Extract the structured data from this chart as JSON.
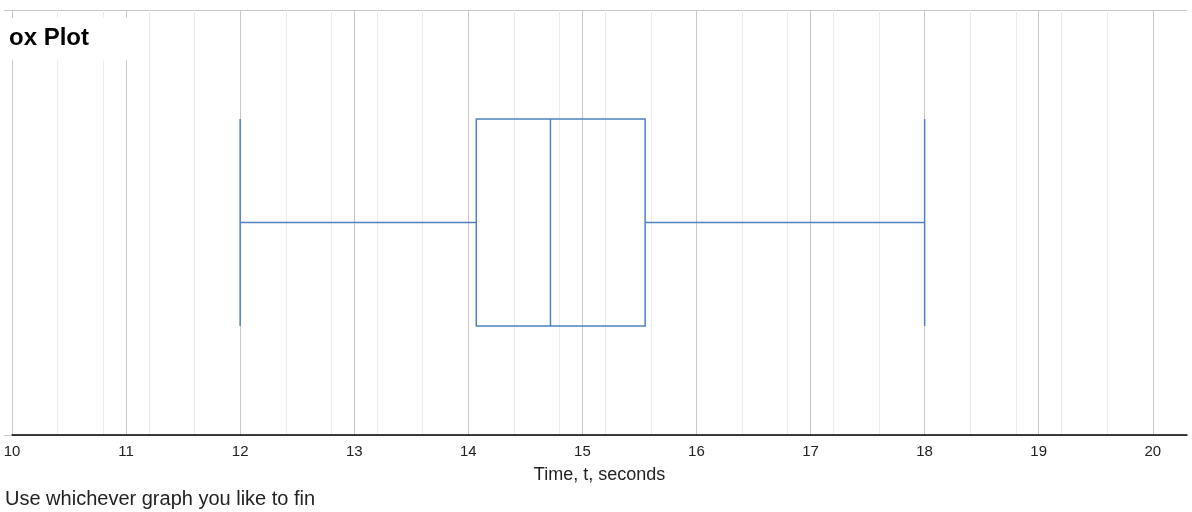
{
  "chart_data": {
    "type": "box",
    "orientation": "horizontal",
    "title": "ox Plot",
    "xlabel": "Time, t, seconds",
    "annotations": [
      "Use whichever graph you like to fin"
    ],
    "categories": [
      null
    ],
    "boxes": [
      {
        "low": 12,
        "q1": 14.07,
        "median": 14.72,
        "q3": 15.55,
        "high": 18
      }
    ],
    "color": "#4f81bd",
    "xlim": [
      10,
      20.3
    ],
    "xticks": [
      10,
      11,
      12,
      13,
      14,
      15,
      16,
      17,
      18,
      19,
      20
    ],
    "grid": true,
    "tick_labels": "x"
  }
}
